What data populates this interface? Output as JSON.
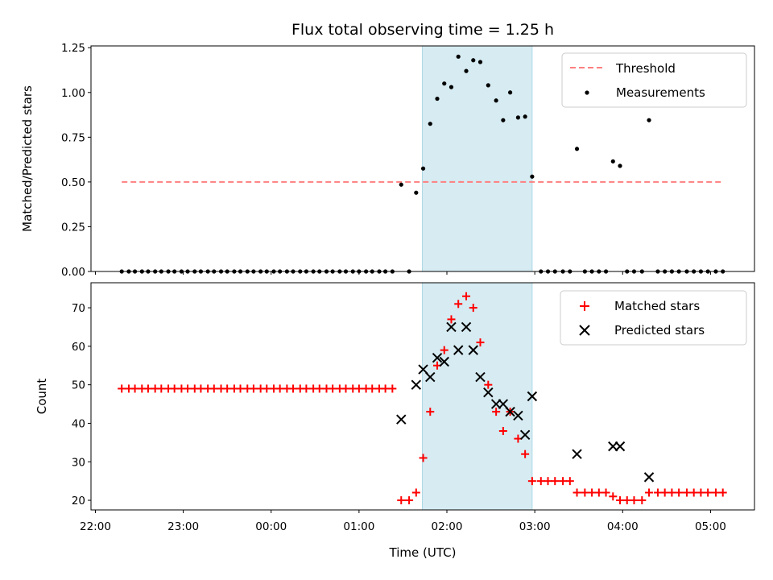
{
  "chart_data": {
    "type": "scatter",
    "title": "Flux total observing time = 1.25 h",
    "xlabel": "Time (UTC)",
    "x_ticks": [
      {
        "h": -2,
        "label": "22:00"
      },
      {
        "h": -1,
        "label": "23:00"
      },
      {
        "h": 0,
        "label": "00:00"
      },
      {
        "h": 1,
        "label": "01:00"
      },
      {
        "h": 2,
        "label": "02:00"
      },
      {
        "h": 3,
        "label": "03:00"
      },
      {
        "h": 4,
        "label": "04:00"
      },
      {
        "h": 5,
        "label": "05:00"
      }
    ],
    "xlim": [
      -2.05,
      5.5
    ],
    "shaded_span": [
      1.72,
      2.97
    ],
    "top": {
      "ylabel": "Matched/Predicted stars",
      "ylim": [
        0,
        1.26
      ],
      "y_ticks": [
        {
          "v": 0,
          "label": "0.00"
        },
        {
          "v": 0.25,
          "label": "0.25"
        },
        {
          "v": 0.5,
          "label": "0.50"
        },
        {
          "v": 0.75,
          "label": "0.75"
        },
        {
          "v": 1.0,
          "label": "1.00"
        },
        {
          "v": 1.25,
          "label": "1.25"
        }
      ],
      "threshold": {
        "value": 0.5,
        "x_range": [
          -1.7,
          5.15
        ],
        "color": "#ff7f7f"
      },
      "legend": [
        "Threshold",
        "Measurements"
      ],
      "measurements": [
        [
          -1.7,
          0
        ],
        [
          -1.62,
          0
        ],
        [
          -1.55,
          0
        ],
        [
          -1.47,
          0
        ],
        [
          -1.4,
          0
        ],
        [
          -1.32,
          0
        ],
        [
          -1.25,
          0
        ],
        [
          -1.17,
          0
        ],
        [
          -1.1,
          0
        ],
        [
          -1.02,
          0
        ],
        [
          -0.95,
          0
        ],
        [
          -0.87,
          0
        ],
        [
          -0.8,
          0
        ],
        [
          -0.72,
          0
        ],
        [
          -0.65,
          0
        ],
        [
          -0.57,
          0
        ],
        [
          -0.5,
          0
        ],
        [
          -0.42,
          0
        ],
        [
          -0.35,
          0
        ],
        [
          -0.27,
          0
        ],
        [
          -0.2,
          0
        ],
        [
          -0.12,
          0
        ],
        [
          -0.05,
          0
        ],
        [
          0.03,
          0
        ],
        [
          0.1,
          0
        ],
        [
          0.18,
          0
        ],
        [
          0.25,
          0
        ],
        [
          0.33,
          0
        ],
        [
          0.4,
          0
        ],
        [
          0.48,
          0
        ],
        [
          0.55,
          0
        ],
        [
          0.63,
          0
        ],
        [
          0.7,
          0
        ],
        [
          0.78,
          0
        ],
        [
          0.85,
          0
        ],
        [
          0.93,
          0
        ],
        [
          1.0,
          0
        ],
        [
          1.08,
          0
        ],
        [
          1.15,
          0
        ],
        [
          1.23,
          0
        ],
        [
          1.3,
          0
        ],
        [
          1.38,
          0
        ],
        [
          1.48,
          0.485
        ],
        [
          1.57,
          0
        ],
        [
          1.65,
          0.44
        ],
        [
          1.73,
          0.575
        ],
        [
          1.81,
          0.825
        ],
        [
          1.89,
          0.965
        ],
        [
          1.97,
          1.05
        ],
        [
          2.05,
          1.03
        ],
        [
          2.13,
          1.2
        ],
        [
          2.22,
          1.12
        ],
        [
          2.3,
          1.18
        ],
        [
          2.38,
          1.17
        ],
        [
          2.47,
          1.04
        ],
        [
          2.56,
          0.955
        ],
        [
          2.64,
          0.845
        ],
        [
          2.72,
          1.0
        ],
        [
          2.81,
          0.86
        ],
        [
          2.89,
          0.865
        ],
        [
          2.97,
          0.53
        ],
        [
          3.07,
          0
        ],
        [
          3.15,
          0
        ],
        [
          3.23,
          0
        ],
        [
          3.32,
          0
        ],
        [
          3.4,
          0
        ],
        [
          3.48,
          0.685
        ],
        [
          3.57,
          0
        ],
        [
          3.65,
          0
        ],
        [
          3.73,
          0
        ],
        [
          3.81,
          0
        ],
        [
          3.89,
          0.615
        ],
        [
          3.97,
          0.59
        ],
        [
          4.05,
          0
        ],
        [
          4.13,
          0
        ],
        [
          4.22,
          0
        ],
        [
          4.3,
          0.845
        ],
        [
          4.4,
          0
        ],
        [
          4.48,
          0
        ],
        [
          4.56,
          0
        ],
        [
          4.64,
          0
        ],
        [
          4.73,
          0
        ],
        [
          4.81,
          0
        ],
        [
          4.89,
          0
        ],
        [
          4.97,
          0
        ],
        [
          5.06,
          0
        ],
        [
          5.14,
          0
        ]
      ]
    },
    "bottom": {
      "ylabel": "Count",
      "ylim": [
        17.5,
        76.5
      ],
      "y_ticks": [
        {
          "v": 20,
          "label": "20"
        },
        {
          "v": 30,
          "label": "30"
        },
        {
          "v": 40,
          "label": "40"
        },
        {
          "v": 50,
          "label": "50"
        },
        {
          "v": 60,
          "label": "60"
        },
        {
          "v": 70,
          "label": "70"
        }
      ],
      "legend": [
        "Matched stars",
        "Predicted stars"
      ],
      "matched_color": "#ff0000",
      "predicted_color": "#000000",
      "matched_stars": [
        [
          -1.7,
          49
        ],
        [
          -1.62,
          49
        ],
        [
          -1.55,
          49
        ],
        [
          -1.47,
          49
        ],
        [
          -1.4,
          49
        ],
        [
          -1.32,
          49
        ],
        [
          -1.25,
          49
        ],
        [
          -1.17,
          49
        ],
        [
          -1.1,
          49
        ],
        [
          -1.02,
          49
        ],
        [
          -0.95,
          49
        ],
        [
          -0.87,
          49
        ],
        [
          -0.8,
          49
        ],
        [
          -0.72,
          49
        ],
        [
          -0.65,
          49
        ],
        [
          -0.57,
          49
        ],
        [
          -0.5,
          49
        ],
        [
          -0.42,
          49
        ],
        [
          -0.35,
          49
        ],
        [
          -0.27,
          49
        ],
        [
          -0.2,
          49
        ],
        [
          -0.12,
          49
        ],
        [
          -0.05,
          49
        ],
        [
          0.03,
          49
        ],
        [
          0.1,
          49
        ],
        [
          0.18,
          49
        ],
        [
          0.25,
          49
        ],
        [
          0.33,
          49
        ],
        [
          0.4,
          49
        ],
        [
          0.48,
          49
        ],
        [
          0.55,
          49
        ],
        [
          0.63,
          49
        ],
        [
          0.7,
          49
        ],
        [
          0.78,
          49
        ],
        [
          0.85,
          49
        ],
        [
          0.93,
          49
        ],
        [
          1.0,
          49
        ],
        [
          1.08,
          49
        ],
        [
          1.15,
          49
        ],
        [
          1.23,
          49
        ],
        [
          1.3,
          49
        ],
        [
          1.38,
          49
        ],
        [
          1.48,
          20
        ],
        [
          1.57,
          20
        ],
        [
          1.65,
          22
        ],
        [
          1.73,
          31
        ],
        [
          1.81,
          43
        ],
        [
          1.89,
          55
        ],
        [
          1.97,
          59
        ],
        [
          2.05,
          67
        ],
        [
          2.13,
          71
        ],
        [
          2.22,
          73
        ],
        [
          2.3,
          70
        ],
        [
          2.38,
          61
        ],
        [
          2.47,
          50
        ],
        [
          2.56,
          43
        ],
        [
          2.64,
          38
        ],
        [
          2.72,
          43
        ],
        [
          2.81,
          36
        ],
        [
          2.89,
          32
        ],
        [
          2.97,
          25
        ],
        [
          3.07,
          25
        ],
        [
          3.15,
          25
        ],
        [
          3.23,
          25
        ],
        [
          3.32,
          25
        ],
        [
          3.4,
          25
        ],
        [
          3.48,
          22
        ],
        [
          3.57,
          22
        ],
        [
          3.65,
          22
        ],
        [
          3.73,
          22
        ],
        [
          3.81,
          22
        ],
        [
          3.89,
          21
        ],
        [
          3.97,
          20
        ],
        [
          4.05,
          20
        ],
        [
          4.13,
          20
        ],
        [
          4.22,
          20
        ],
        [
          4.3,
          22
        ],
        [
          4.4,
          22
        ],
        [
          4.48,
          22
        ],
        [
          4.56,
          22
        ],
        [
          4.64,
          22
        ],
        [
          4.73,
          22
        ],
        [
          4.81,
          22
        ],
        [
          4.89,
          22
        ],
        [
          4.97,
          22
        ],
        [
          5.06,
          22
        ],
        [
          5.14,
          22
        ]
      ],
      "predicted_stars": [
        [
          1.48,
          41
        ],
        [
          1.65,
          50
        ],
        [
          1.73,
          54
        ],
        [
          1.81,
          52
        ],
        [
          1.89,
          57
        ],
        [
          1.97,
          56
        ],
        [
          2.05,
          65
        ],
        [
          2.13,
          59
        ],
        [
          2.22,
          65
        ],
        [
          2.3,
          59
        ],
        [
          2.38,
          52
        ],
        [
          2.47,
          48
        ],
        [
          2.56,
          45
        ],
        [
          2.64,
          45
        ],
        [
          2.72,
          43
        ],
        [
          2.81,
          42
        ],
        [
          2.89,
          37
        ],
        [
          2.97,
          47
        ],
        [
          3.48,
          32
        ],
        [
          3.89,
          34
        ],
        [
          3.97,
          34
        ],
        [
          4.3,
          26
        ]
      ]
    }
  }
}
